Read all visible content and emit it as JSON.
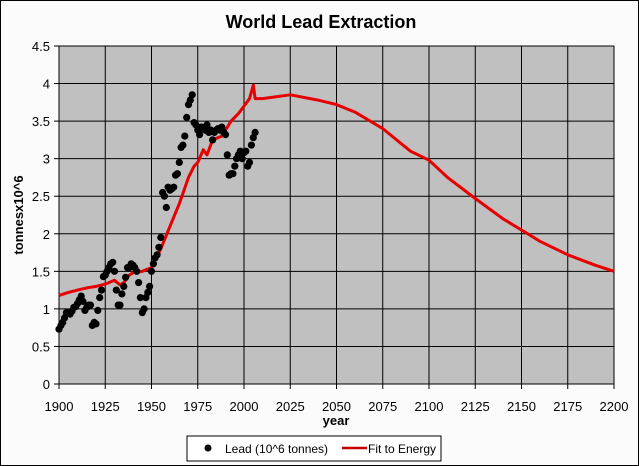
{
  "chart_data": {
    "type": "scatter",
    "title": "World Lead Extraction",
    "xlabel": "year",
    "ylabel": "tonnesx10^6",
    "xlim": [
      1900,
      2200
    ],
    "ylim": [
      0,
      4.5
    ],
    "xticks": [
      "1900",
      "1925",
      "1950",
      "1975",
      "2000",
      "2025",
      "2050",
      "2075",
      "2100",
      "2125",
      "2150",
      "2175",
      "2200"
    ],
    "yticks": [
      "0",
      "0.5",
      "1",
      "1.5",
      "2",
      "2.5",
      "3",
      "3.5",
      "4",
      "4.5"
    ],
    "grid": true,
    "legend_position": "bottom",
    "colors": {
      "plot_bg": "#c0c0c0",
      "scatter": "#000000",
      "fit": "#e60000",
      "grid": "#000000"
    },
    "series": [
      {
        "name": "Lead (10^6 tonnes)",
        "kind": "scatter",
        "x": [
          1900,
          1901,
          1902,
          1903,
          1904,
          1905,
          1906,
          1907,
          1908,
          1909,
          1910,
          1911,
          1912,
          1913,
          1914,
          1915,
          1916,
          1917,
          1918,
          1919,
          1920,
          1921,
          1922,
          1923,
          1924,
          1925,
          1926,
          1927,
          1928,
          1929,
          1930,
          1931,
          1932,
          1933,
          1934,
          1935,
          1936,
          1937,
          1938,
          1939,
          1940,
          1941,
          1942,
          1943,
          1944,
          1945,
          1946,
          1947,
          1948,
          1949,
          1950,
          1951,
          1952,
          1953,
          1954,
          1955,
          1956,
          1957,
          1958,
          1959,
          1960,
          1961,
          1962,
          1963,
          1964,
          1965,
          1966,
          1967,
          1968,
          1969,
          1970,
          1971,
          1972,
          1973,
          1974,
          1975,
          1976,
          1977,
          1978,
          1979,
          1980,
          1981,
          1982,
          1983,
          1984,
          1985,
          1986,
          1987,
          1988,
          1989,
          1990,
          1991,
          1992,
          1993,
          1994,
          1995,
          1996,
          1997,
          1998,
          1999,
          2000,
          2001,
          2002,
          2003,
          2004,
          2005,
          2006
        ],
        "y": [
          0.73,
          0.78,
          0.82,
          0.88,
          0.95,
          0.95,
          0.93,
          0.97,
          1.02,
          1.03,
          1.07,
          1.12,
          1.17,
          1.1,
          0.98,
          1.02,
          1.05,
          1.05,
          0.78,
          0.82,
          0.8,
          0.98,
          1.15,
          1.25,
          1.43,
          1.45,
          1.5,
          1.55,
          1.6,
          1.62,
          1.5,
          1.25,
          1.05,
          1.05,
          1.2,
          1.3,
          1.42,
          1.55,
          1.55,
          1.6,
          1.58,
          1.55,
          1.5,
          1.35,
          1.15,
          0.95,
          1.0,
          1.15,
          1.22,
          1.3,
          1.5,
          1.6,
          1.68,
          1.72,
          1.82,
          1.95,
          2.55,
          2.5,
          2.35,
          2.62,
          2.58,
          2.6,
          2.62,
          2.78,
          2.8,
          2.95,
          3.15,
          3.18,
          3.3,
          3.55,
          3.72,
          3.78,
          3.85,
          3.48,
          3.45,
          3.38,
          3.32,
          3.42,
          3.4,
          3.38,
          3.45,
          3.35,
          3.38,
          3.25,
          3.35,
          3.38,
          3.4,
          3.38,
          3.42,
          3.35,
          3.32,
          3.05,
          2.78,
          2.8,
          2.8,
          2.9,
          3.0,
          3.05,
          3.1,
          3.0,
          3.08,
          3.1,
          2.9,
          2.95,
          3.18,
          3.28,
          3.35
        ]
      },
      {
        "name": "Fit to Energy",
        "kind": "line",
        "x": [
          1900,
          1905,
          1910,
          1915,
          1920,
          1925,
          1930,
          1933,
          1935,
          1938,
          1940,
          1945,
          1950,
          1955,
          1960,
          1965,
          1970,
          1973,
          1975,
          1978,
          1980,
          1983,
          1988,
          1993,
          1997,
          2000,
          2003,
          2005,
          2006,
          2010,
          2025,
          2040,
          2050,
          2060,
          2075,
          2090,
          2100,
          2110,
          2125,
          2140,
          2150,
          2160,
          2175,
          2190,
          2200
        ],
        "y": [
          1.18,
          1.22,
          1.25,
          1.28,
          1.3,
          1.33,
          1.38,
          1.32,
          1.35,
          1.45,
          1.48,
          1.5,
          1.55,
          1.8,
          2.1,
          2.4,
          2.75,
          2.9,
          2.95,
          3.12,
          3.05,
          3.25,
          3.3,
          3.5,
          3.6,
          3.7,
          3.8,
          3.98,
          3.8,
          3.8,
          3.85,
          3.78,
          3.72,
          3.62,
          3.4,
          3.1,
          2.98,
          2.75,
          2.47,
          2.2,
          2.05,
          1.9,
          1.72,
          1.58,
          1.5
        ]
      }
    ]
  }
}
